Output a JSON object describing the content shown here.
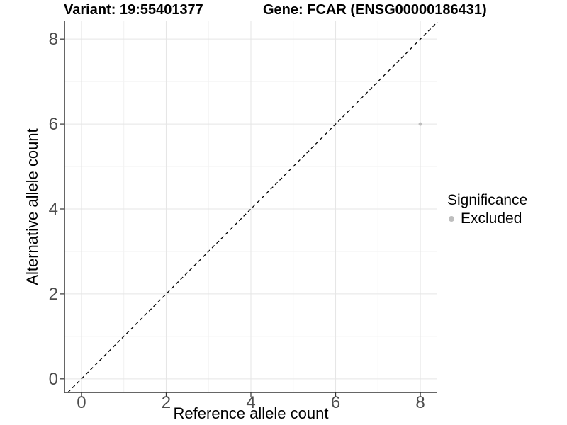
{
  "chart_data": {
    "type": "scatter",
    "titles": {
      "left": "Variant: 19:55401377",
      "right": "Gene: FCAR (ENSG00000186431)"
    },
    "xlabel": "Reference allele count",
    "ylabel": "Alternative allele count",
    "x_ticks": [
      0,
      2,
      4,
      6,
      8
    ],
    "y_ticks": [
      0,
      2,
      4,
      6,
      8
    ],
    "x_minor_gridlines": [
      1,
      3,
      5,
      7
    ],
    "y_minor_gridlines": [
      1,
      3,
      5,
      7
    ],
    "xlim": [
      -0.4,
      8.4
    ],
    "ylim": [
      -0.32,
      8.42
    ],
    "grid": "major+minor",
    "reference_line": {
      "kind": "identity y=x",
      "style": "dashed",
      "color": "#000000"
    },
    "series": [
      {
        "name": "Excluded",
        "color": "#bebebe",
        "points": [
          {
            "x": 8,
            "y": 6
          }
        ]
      }
    ],
    "legend": {
      "title": "Significance",
      "position": "right",
      "entries": [
        {
          "label": "Excluded",
          "color": "#bebebe"
        }
      ]
    }
  },
  "colors": {
    "background": "#ffffff",
    "grid_major": "#e5e5e5",
    "grid_minor": "#f2f2f2",
    "axis_line": "#333333",
    "tick_label": "#4d4d4d",
    "excluded_point": "#bebebe"
  }
}
